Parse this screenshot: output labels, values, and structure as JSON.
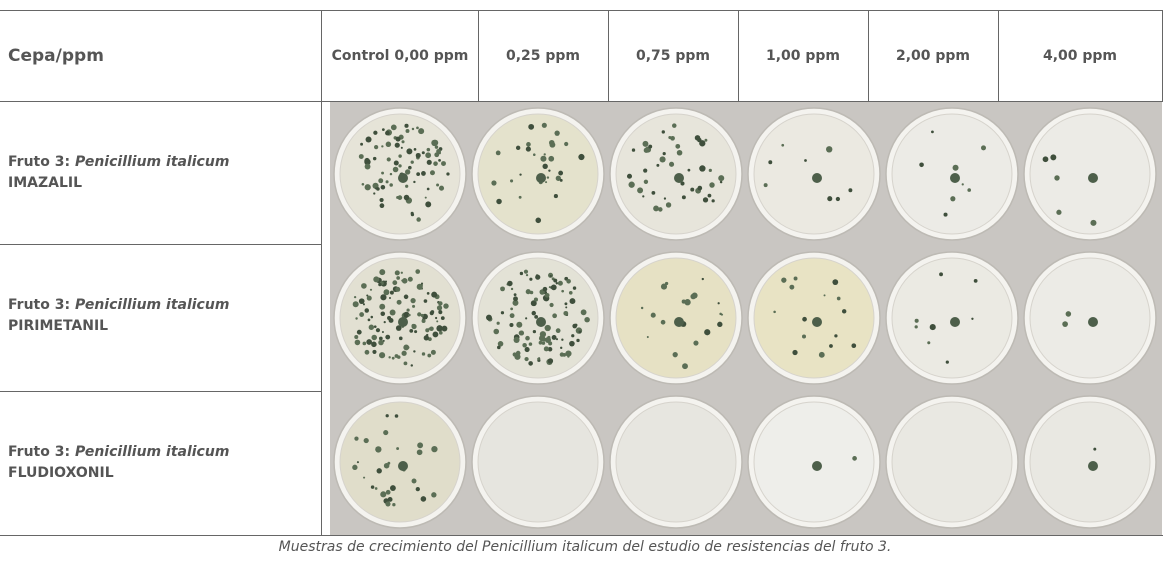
{
  "header": {
    "title": "Cepa/ppm",
    "columns": [
      "Control 0,00 ppm",
      "0,25 ppm",
      "0,75 ppm",
      "1,00 ppm",
      "2,00 ppm",
      "4,00 ppm"
    ]
  },
  "rows": [
    {
      "prefix": "Fruto 3:",
      "species": "Penicillium italicum",
      "treatment": "IMAZALIL"
    },
    {
      "prefix": "Fruto 3:",
      "species": "Penicillium italicum",
      "treatment": "PIRIMETANIL"
    },
    {
      "prefix": "Fruto 3:",
      "species": "Penicillium italicum",
      "treatment": "FLUDIOXONIL"
    }
  ],
  "caption": "Muestras de crecimiento del Penicillium italicum del estudio de resistencias del fruto 3."
}
